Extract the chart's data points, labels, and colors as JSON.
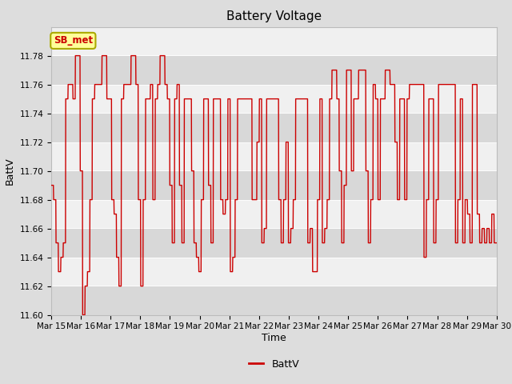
{
  "title": "Battery Voltage",
  "xlabel": "Time",
  "ylabel": "BattV",
  "legend_label": "BattV",
  "annotation_text": "SB_met",
  "ylim": [
    11.6,
    11.8
  ],
  "yticks": [
    11.6,
    11.62,
    11.64,
    11.66,
    11.68,
    11.7,
    11.72,
    11.74,
    11.76,
    11.78
  ],
  "x_labels": [
    "Mar 15",
    "Mar 16",
    "Mar 17",
    "Mar 18",
    "Mar 19",
    "Mar 20",
    "Mar 21",
    "Mar 22",
    "Mar 23",
    "Mar 24",
    "Mar 25",
    "Mar 26",
    "Mar 27",
    "Mar 28",
    "Mar 29",
    "Mar 30"
  ],
  "line_color": "#cc0000",
  "bg_color": "#dddddd",
  "plot_bg_color": "#f0f0f0",
  "grid_color": "#ffffff",
  "annotation_bg": "#ffff99",
  "annotation_border": "#aaaa00",
  "annotation_text_color": "#cc0000",
  "title_fontsize": 11,
  "axis_label_fontsize": 9,
  "tick_fontsize": 7.5,
  "legend_fontsize": 9,
  "n_days": 16,
  "segments": [
    11.69,
    11.68,
    11.65,
    11.63,
    11.64,
    11.65,
    11.75,
    11.76,
    11.76,
    11.75,
    11.78,
    11.78,
    11.7,
    11.6,
    11.62,
    11.63,
    11.68,
    11.75,
    11.76,
    11.76,
    11.76,
    11.78,
    11.78,
    11.75,
    11.75,
    11.68,
    11.67,
    11.64,
    11.62,
    11.75,
    11.76,
    11.76,
    11.76,
    11.78,
    11.78,
    11.76,
    11.68,
    11.62,
    11.68,
    11.75,
    11.75,
    11.76,
    11.68,
    11.75,
    11.76,
    11.78,
    11.78,
    11.76,
    11.75,
    11.69,
    11.65,
    11.75,
    11.76,
    11.69,
    11.65,
    11.75,
    11.75,
    11.75,
    11.7,
    11.65,
    11.64,
    11.63,
    11.68,
    11.75,
    11.75,
    11.69,
    11.65,
    11.75,
    11.75,
    11.75,
    11.68,
    11.67,
    11.68,
    11.75,
    11.63,
    11.64,
    11.68,
    11.75,
    11.75,
    11.75,
    11.75,
    11.75,
    11.75,
    11.68,
    11.68,
    11.72,
    11.75,
    11.65,
    11.66,
    11.75,
    11.75,
    11.75,
    11.75,
    11.75,
    11.68,
    11.65,
    11.68,
    11.72,
    11.65,
    11.66,
    11.68,
    11.75,
    11.75,
    11.75,
    11.75,
    11.75,
    11.65,
    11.66,
    11.63,
    11.63,
    11.68,
    11.75,
    11.65,
    11.66,
    11.68,
    11.75,
    11.77,
    11.77,
    11.75,
    11.7,
    11.65,
    11.69,
    11.77,
    11.77,
    11.7,
    11.75,
    11.75,
    11.77,
    11.77,
    11.77,
    11.7,
    11.65,
    11.68,
    11.76,
    11.75,
    11.68,
    11.75,
    11.75,
    11.77,
    11.77,
    11.76,
    11.76,
    11.72,
    11.68,
    11.75,
    11.75,
    11.68,
    11.75,
    11.76,
    11.76,
    11.76,
    11.76,
    11.76,
    11.76,
    11.64,
    11.68,
    11.75,
    11.75,
    11.65,
    11.68,
    11.76,
    11.76,
    11.76,
    11.76,
    11.76,
    11.76,
    11.76,
    11.65,
    11.68,
    11.75,
    11.65,
    11.68,
    11.67,
    11.65,
    11.76,
    11.76,
    11.67,
    11.65,
    11.66,
    11.65,
    11.66,
    11.65,
    11.67,
    11.65
  ]
}
